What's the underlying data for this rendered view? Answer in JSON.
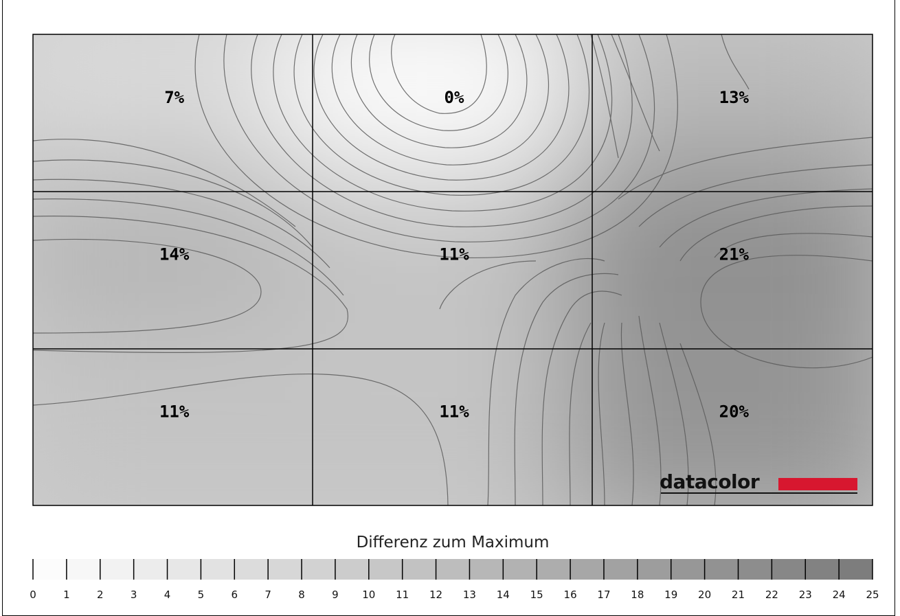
{
  "chart_data": {
    "type": "heatmap",
    "grid": {
      "rows": 3,
      "cols": 3
    },
    "cells": [
      [
        "7%",
        "0%",
        "13%"
      ],
      [
        "14%",
        "11%",
        "21%"
      ],
      [
        "11%",
        "11%",
        "20%"
      ]
    ],
    "values": [
      [
        7,
        0,
        13
      ],
      [
        14,
        11,
        21
      ],
      [
        11,
        11,
        20
      ]
    ],
    "colorscale": {
      "min": 0,
      "max": 25,
      "low_color": "#ffffff",
      "high_color": "#7a7a7a"
    },
    "legend": {
      "title": "Differenz zum Maximum",
      "ticks": [
        "0",
        "1",
        "2",
        "3",
        "4",
        "5",
        "6",
        "7",
        "8",
        "9",
        "10",
        "11",
        "12",
        "13",
        "14",
        "15",
        "16",
        "17",
        "18",
        "19",
        "20",
        "21",
        "22",
        "23",
        "24",
        "25"
      ]
    },
    "contours": true,
    "gridlines": true
  },
  "brand": {
    "name": "datacolor",
    "accent": "#d7172f"
  }
}
